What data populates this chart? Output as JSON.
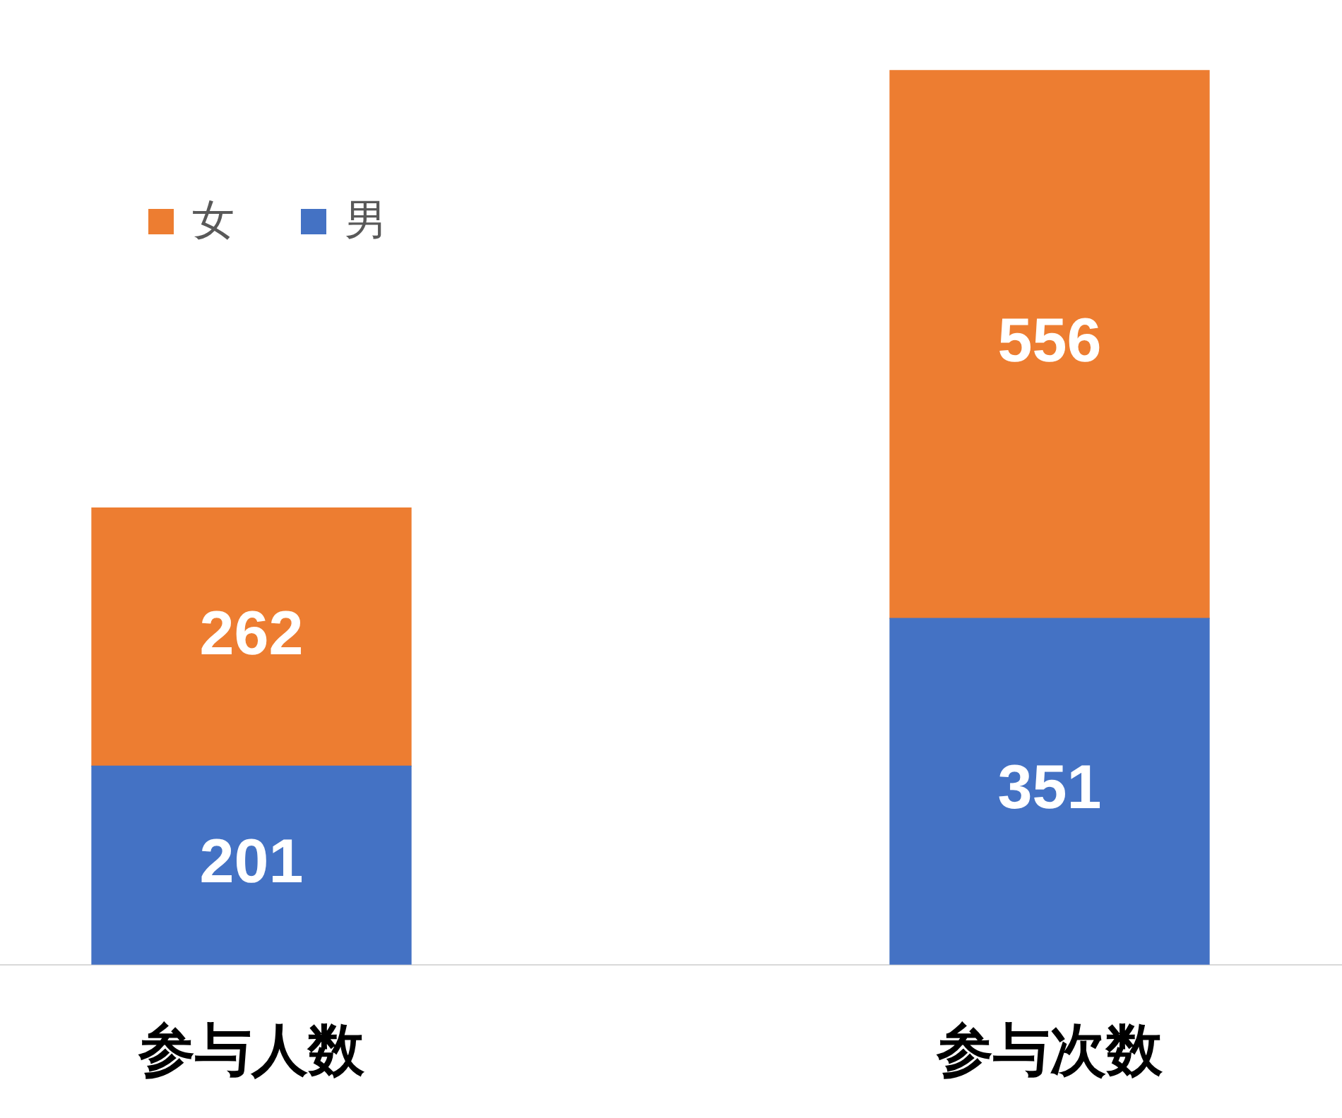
{
  "chart_data": {
    "type": "bar",
    "categories": [
      "参与人数",
      "参与次数"
    ],
    "stacked": true,
    "series": [
      {
        "name": "男",
        "color": "#4472c4",
        "values": [
          201,
          351
        ]
      },
      {
        "name": "女",
        "color": "#ed7d31",
        "values": [
          262,
          556
        ]
      }
    ],
    "data_labels": true,
    "legend": "top left",
    "tick_labels": "x",
    "grid": false
  }
}
